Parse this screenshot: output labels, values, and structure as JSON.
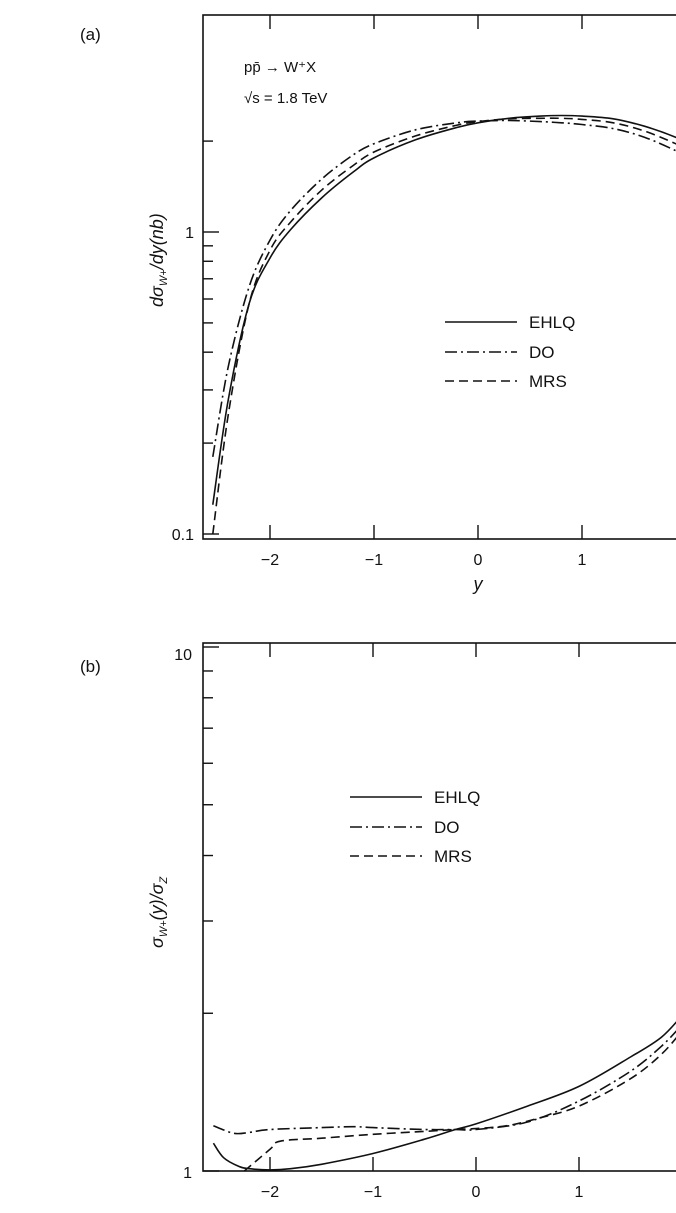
{
  "chart_data": [
    {
      "panel": "(a)",
      "type": "line",
      "ylabel": "dσW+/dy(nb)",
      "ylabel_main": "dσ",
      "ylabel_sub": "W+",
      "ylabel_tail": "/dy(nb)",
      "xlabel": "y",
      "xlim": [
        -2.55,
        2.0
      ],
      "ylim": [
        0.1,
        2.5
      ],
      "yscale": "log",
      "x_ticks": [
        -2,
        -1,
        0,
        1
      ],
      "x_tick_labels": [
        "−2",
        "−1",
        "0",
        "1"
      ],
      "y_tick_labels": [
        {
          "value": 1,
          "label": "1"
        },
        {
          "value": 0.1,
          "label": "0.1"
        }
      ],
      "annotation": {
        "process": "pp̄ → W⁺X",
        "energy": "√s = 1.8 TeV"
      },
      "legend_position": "right",
      "series": [
        {
          "name": "EHLQ",
          "dash": "solid",
          "x": [
            -2.55,
            -2.4,
            -2.2,
            -2.0,
            -1.8,
            -1.5,
            -1.2,
            -1.0,
            -0.6,
            -0.2,
            0.0,
            0.3,
            0.6,
            0.8,
            1.0,
            1.3,
            1.6,
            1.9,
            2.0
          ],
          "y": [
            0.125,
            0.28,
            0.58,
            0.82,
            1.02,
            1.3,
            1.58,
            1.76,
            2.02,
            2.22,
            2.3,
            2.38,
            2.42,
            2.43,
            2.42,
            2.37,
            2.24,
            2.06,
            1.97
          ]
        },
        {
          "name": "DO",
          "dash": "dashdot",
          "x": [
            -2.55,
            -2.4,
            -2.2,
            -2.0,
            -1.8,
            -1.5,
            -1.2,
            -1.0,
            -0.6,
            -0.2,
            0.0,
            0.3,
            0.6,
            0.8,
            1.0,
            1.3,
            1.6,
            1.9,
            2.0
          ],
          "y": [
            0.18,
            0.36,
            0.66,
            0.94,
            1.18,
            1.5,
            1.8,
            1.96,
            2.18,
            2.3,
            2.33,
            2.34,
            2.32,
            2.3,
            2.27,
            2.2,
            2.06,
            1.86,
            1.78
          ]
        },
        {
          "name": "MRS",
          "dash": "dashed",
          "x": [
            -2.55,
            -2.4,
            -2.2,
            -2.0,
            -1.8,
            -1.5,
            -1.2,
            -1.0,
            -0.6,
            -0.2,
            0.0,
            0.3,
            0.6,
            0.8,
            1.0,
            1.3,
            1.6,
            1.9,
            2.0
          ],
          "y": [
            0.1,
            0.25,
            0.58,
            0.87,
            1.08,
            1.38,
            1.66,
            1.84,
            2.08,
            2.26,
            2.32,
            2.37,
            2.38,
            2.38,
            2.36,
            2.3,
            2.16,
            1.96,
            1.86
          ]
        }
      ]
    },
    {
      "panel": "(b)",
      "type": "line",
      "ylabel": "σW+(y)/σZ",
      "ylabel_main1": "σ",
      "ylabel_sub1": "W+",
      "ylabel_mid": "(y)/σ",
      "ylabel_sub2": "Z",
      "xlabel": "",
      "xlim": [
        -2.55,
        2.0
      ],
      "ylim": [
        1,
        10
      ],
      "yscale": "log",
      "x_ticks": [
        -2,
        -1,
        0,
        1
      ],
      "x_tick_labels": [
        "−2",
        "−1",
        "0",
        "1"
      ],
      "y_tick_labels": [
        {
          "value": 10,
          "label": "10"
        },
        {
          "value": 1,
          "label": "1"
        }
      ],
      "legend_position": "upper-left",
      "series": [
        {
          "name": "EHLQ",
          "dash": "solid",
          "x": [
            -2.55,
            -2.45,
            -2.3,
            -2.2,
            -2.0,
            -1.8,
            -1.5,
            -1.0,
            -0.5,
            -0.2,
            0.0,
            0.5,
            1.0,
            1.5,
            1.8,
            2.0
          ],
          "y": [
            1.13,
            1.06,
            1.02,
            1.01,
            1.005,
            1.01,
            1.03,
            1.08,
            1.15,
            1.2,
            1.23,
            1.33,
            1.45,
            1.65,
            1.8,
            1.98
          ]
        },
        {
          "name": "DO",
          "dash": "dashdot",
          "x": [
            -2.55,
            -2.35,
            -2.2,
            -2.0,
            -1.5,
            -1.2,
            -1.0,
            -0.5,
            -0.2,
            0.0,
            0.5,
            1.0,
            1.5,
            1.8,
            2.0
          ],
          "y": [
            1.22,
            1.18,
            1.185,
            1.2,
            1.21,
            1.215,
            1.21,
            1.2,
            1.2,
            1.2,
            1.24,
            1.36,
            1.55,
            1.73,
            1.9
          ]
        },
        {
          "name": "MRS",
          "dash": "dashed",
          "x": [
            -2.25,
            -2.0,
            -1.9,
            -1.5,
            -1.0,
            -0.5,
            -0.2,
            0.0,
            0.3,
            0.6,
            1.0,
            1.5,
            1.8,
            2.0
          ],
          "y": [
            1.0,
            1.1,
            1.14,
            1.155,
            1.175,
            1.19,
            1.2,
            1.205,
            1.22,
            1.26,
            1.33,
            1.5,
            1.67,
            1.85
          ]
        }
      ]
    }
  ]
}
